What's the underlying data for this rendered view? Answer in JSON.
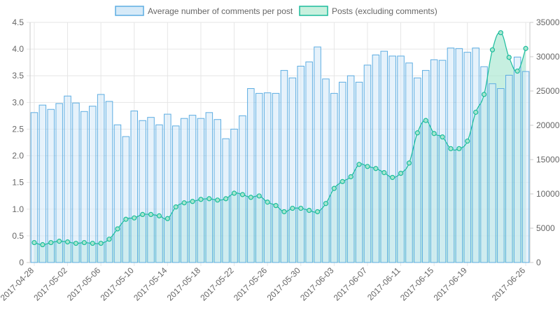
{
  "chart_data": {
    "type": "bar",
    "x": [
      "2017-04-28",
      "2017-04-29",
      "2017-04-30",
      "2017-05-01",
      "2017-05-02",
      "2017-05-03",
      "2017-05-04",
      "2017-05-05",
      "2017-05-06",
      "2017-05-07",
      "2017-05-08",
      "2017-05-09",
      "2017-05-10",
      "2017-05-11",
      "2017-05-12",
      "2017-05-13",
      "2017-05-14",
      "2017-05-15",
      "2017-05-16",
      "2017-05-17",
      "2017-05-18",
      "2017-05-19",
      "2017-05-20",
      "2017-05-21",
      "2017-05-22",
      "2017-05-23",
      "2017-05-24",
      "2017-05-25",
      "2017-05-26",
      "2017-05-27",
      "2017-05-28",
      "2017-05-29",
      "2017-05-30",
      "2017-05-31",
      "2017-06-01",
      "2017-06-02",
      "2017-06-03",
      "2017-06-04",
      "2017-06-05",
      "2017-06-06",
      "2017-06-07",
      "2017-06-08",
      "2017-06-09",
      "2017-06-10",
      "2017-06-11",
      "2017-06-12",
      "2017-06-13",
      "2017-06-14",
      "2017-06-15",
      "2017-06-16",
      "2017-06-17",
      "2017-06-18",
      "2017-06-19",
      "2017-06-20",
      "2017-06-21",
      "2017-06-22",
      "2017-06-23",
      "2017-06-24",
      "2017-06-25",
      "2017-06-26"
    ],
    "x_tick_labels": [
      "2017-04-28",
      "2017-05-02",
      "2017-05-06",
      "2017-05-10",
      "2017-05-14",
      "2017-05-18",
      "2017-05-22",
      "2017-05-26",
      "2017-05-30",
      "2017-06-03",
      "2017-06-07",
      "2017-06-11",
      "2017-06-15",
      "2017-06-19",
      "2017-06-26"
    ],
    "x_tick_indices": [
      0,
      4,
      8,
      12,
      16,
      20,
      24,
      28,
      32,
      36,
      40,
      44,
      48,
      52,
      59
    ],
    "series": [
      {
        "name": "Average number of comments per post",
        "type": "bar",
        "axis": "left",
        "fill": "#d6eaf8",
        "stroke": "#5dade2",
        "values": [
          2.81,
          2.95,
          2.87,
          2.98,
          3.12,
          2.99,
          2.83,
          2.93,
          3.15,
          3.02,
          2.58,
          2.36,
          2.84,
          2.66,
          2.72,
          2.58,
          2.78,
          2.56,
          2.7,
          2.76,
          2.7,
          2.81,
          2.68,
          2.32,
          2.5,
          2.75,
          3.26,
          3.17,
          3.18,
          3.17,
          3.6,
          3.46,
          3.68,
          3.76,
          4.04,
          3.44,
          3.17,
          3.38,
          3.5,
          3.38,
          3.7,
          3.89,
          3.96,
          3.87,
          3.87,
          3.74,
          3.46,
          3.6,
          3.8,
          3.79,
          4.02,
          4.01,
          3.94,
          4.02,
          3.67,
          3.35,
          3.26,
          3.51,
          3.85,
          3.58
        ]
      },
      {
        "name": "Posts (excluding comments)",
        "type": "area",
        "axis": "right",
        "fill": "#a8e6cf",
        "stroke": "#1abc9c",
        "values": [
          2900,
          2600,
          2900,
          3100,
          3000,
          2800,
          2900,
          2800,
          2800,
          3400,
          4900,
          6300,
          6500,
          7000,
          7000,
          6800,
          6400,
          8100,
          8700,
          8900,
          9200,
          9300,
          9100,
          9300,
          10100,
          9900,
          9500,
          9700,
          8800,
          8300,
          7400,
          7900,
          7900,
          7600,
          7400,
          8600,
          10800,
          11800,
          12500,
          14300,
          14000,
          13700,
          13100,
          12400,
          13000,
          14500,
          18900,
          20700,
          18800,
          18300,
          16600,
          16600,
          17700,
          21900,
          24500,
          31000,
          33500,
          29900,
          27900,
          31200
        ]
      }
    ],
    "y_left": {
      "min": 0,
      "max": 4.5,
      "step": 0.5,
      "ticks": [
        "0",
        "0.5",
        "1.0",
        "1.5",
        "2.0",
        "2.5",
        "3.0",
        "3.5",
        "4.0",
        "4.5"
      ]
    },
    "y_right": {
      "min": 0,
      "max": 35000,
      "step": 5000,
      "ticks": [
        "0",
        "5000",
        "10000",
        "15000",
        "20000",
        "25000",
        "30000",
        "35000"
      ]
    },
    "legend": {
      "placement": "top-center",
      "items": [
        {
          "label": "Average number of comments per post",
          "fill": "#d6eaf8",
          "stroke": "#5dade2"
        },
        {
          "label": "Posts (excluding comments)",
          "fill": "#c8f0de",
          "stroke": "#1abc9c"
        }
      ]
    },
    "grid": true
  }
}
